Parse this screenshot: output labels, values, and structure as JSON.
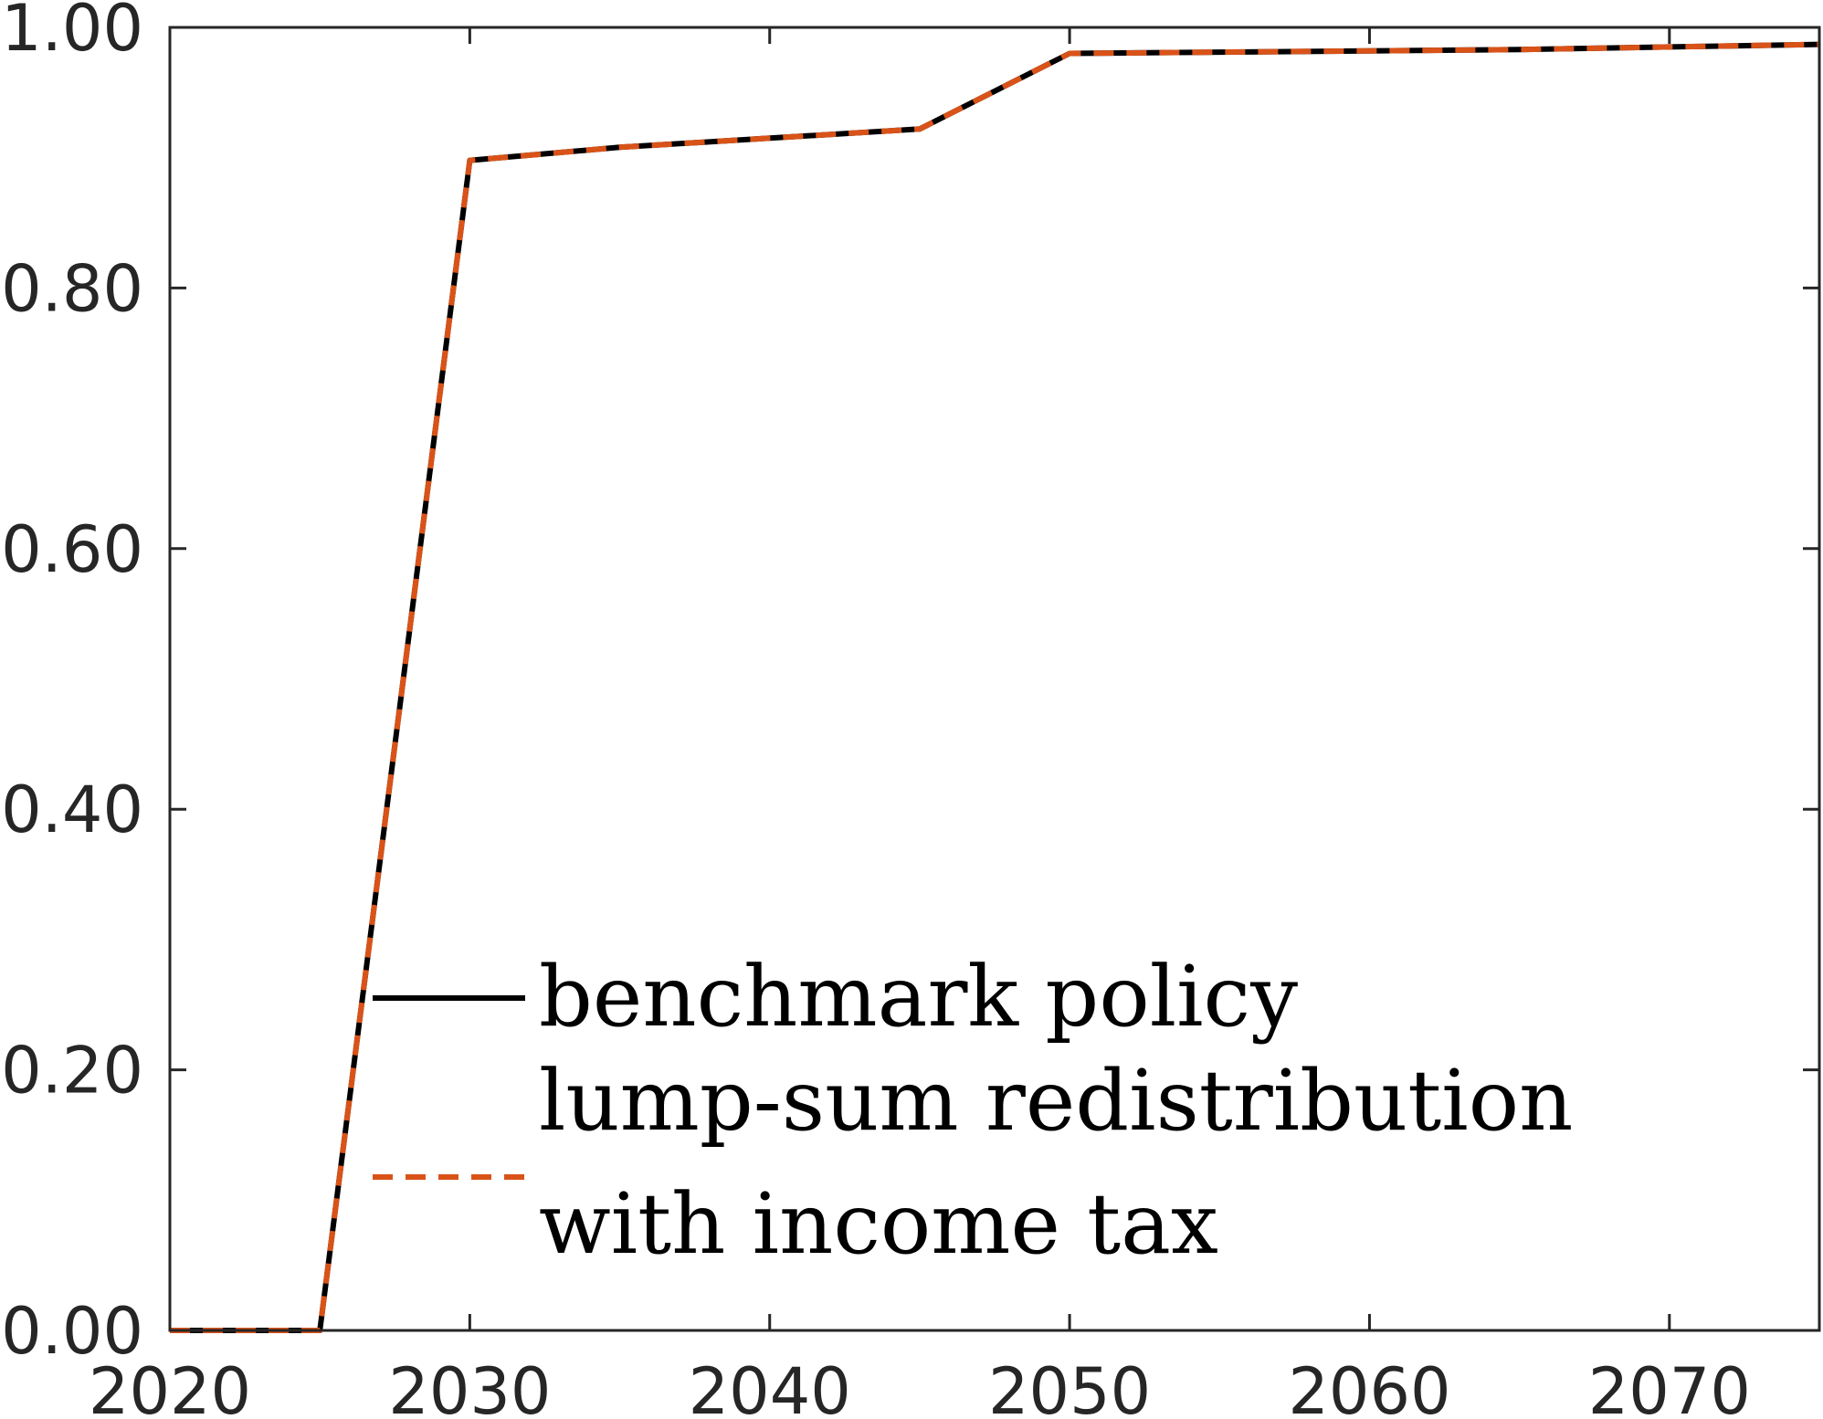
{
  "chart_data": {
    "type": "line",
    "title": "",
    "xlabel": "",
    "ylabel": "",
    "xlim": [
      2020,
      2075
    ],
    "ylim": [
      0,
      1
    ],
    "xticks": [
      "2020",
      "2030",
      "2040",
      "2050",
      "2060",
      "2070"
    ],
    "yticks": [
      "0.00",
      "0.20",
      "0.40",
      "0.60",
      "0.80",
      "1.00"
    ],
    "grid": false,
    "legend_position": "bottom-center",
    "series": [
      {
        "name": "benchmark policy",
        "color": "#000000",
        "style": "solid",
        "x": [
          2020,
          2025,
          2030,
          2035,
          2040,
          2045,
          2050,
          2055,
          2060,
          2065,
          2070,
          2075
        ],
        "y": [
          0.0,
          0.0,
          0.898,
          0.908,
          0.915,
          0.922,
          0.98,
          0.981,
          0.982,
          0.983,
          0.985,
          0.987
        ]
      },
      {
        "name": "lump-sum redistribution with income tax",
        "color": "#D95319",
        "style": "dashed",
        "x": [
          2020,
          2025,
          2030,
          2035,
          2040,
          2045,
          2050,
          2055,
          2060,
          2065,
          2070,
          2075
        ],
        "y": [
          0.0,
          0.0,
          0.898,
          0.908,
          0.915,
          0.922,
          0.98,
          0.981,
          0.982,
          0.983,
          0.985,
          0.987
        ]
      }
    ],
    "legend_lines": {
      "entry1": "benchmark policy",
      "entry2_line1": "lump-sum redistribution",
      "entry2_line2": "with income tax"
    }
  }
}
